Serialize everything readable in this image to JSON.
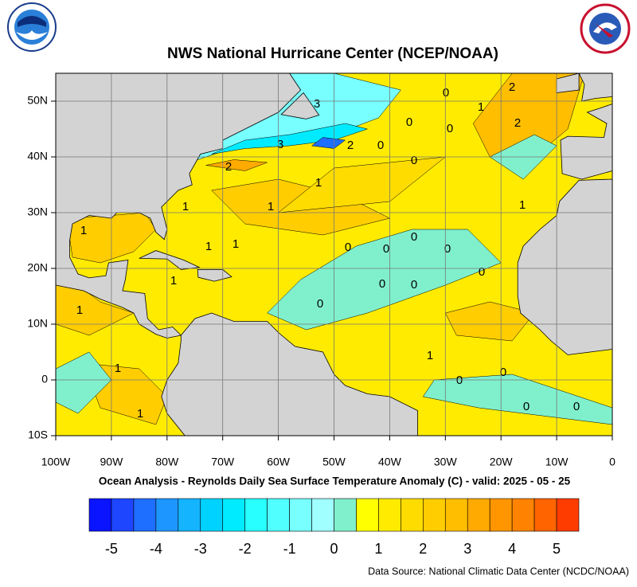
{
  "map": {
    "type": "sst-anomaly-map",
    "title": "NWS National Hurricane Center (NCEP/NOAA)",
    "subtitle": "Ocean Analysis - Reynolds Daily Sea Surface Temperature Anomaly (C) - valid: 2025 - 05 - 25",
    "source": "Data Source: National Climatic Data Center (NCDC/NOAA)",
    "xlim": [
      -100,
      0
    ],
    "ylim": [
      -10,
      55
    ],
    "xticks": [
      {
        "value": -100,
        "label": "100W"
      },
      {
        "value": -90,
        "label": "90W"
      },
      {
        "value": -80,
        "label": "80W"
      },
      {
        "value": -70,
        "label": "70W"
      },
      {
        "value": -60,
        "label": "60W"
      },
      {
        "value": -50,
        "label": "50W"
      },
      {
        "value": -40,
        "label": "40W"
      },
      {
        "value": -30,
        "label": "30W"
      },
      {
        "value": -20,
        "label": "20W"
      },
      {
        "value": -10,
        "label": "10W"
      },
      0
    ],
    "yticks": [
      {
        "value": -10,
        "label": "10S"
      },
      0,
      {
        "value": 10,
        "label": "10N"
      },
      {
        "value": 20,
        "label": "20N"
      },
      {
        "value": 30,
        "label": "30N"
      },
      {
        "value": 40,
        "label": "40N"
      },
      {
        "value": 50,
        "label": "50N"
      }
    ],
    "grid": true,
    "colorbar": {
      "range": [
        -5.5,
        5.5
      ],
      "ticks": [
        -5,
        -4,
        -3,
        -2,
        -1,
        0,
        1,
        2,
        3,
        4,
        5
      ],
      "colors": [
        "#0a14ff",
        "#1e46ff",
        "#1e6eff",
        "#1e96ff",
        "#14b4ff",
        "#00d2ff",
        "#00ebff",
        "#28ffff",
        "#50ffff",
        "#78ffff",
        "#a0ffff",
        "#80f0cc",
        "#ffff00",
        "#ffeb00",
        "#ffdc00",
        "#ffcd00",
        "#ffbe00",
        "#ffaa00",
        "#ff9600",
        "#ff8200",
        "#ff6400",
        "#ff3c00"
      ]
    },
    "contour_labels": [
      3,
      3,
      2,
      2,
      2,
      2,
      0,
      0,
      0,
      0,
      0,
      0,
      0,
      0,
      0,
      0,
      0,
      0,
      0,
      0,
      0,
      0,
      0,
      1,
      1,
      1,
      1,
      1,
      1,
      1,
      1,
      1,
      1,
      1,
      1,
      1
    ]
  }
}
